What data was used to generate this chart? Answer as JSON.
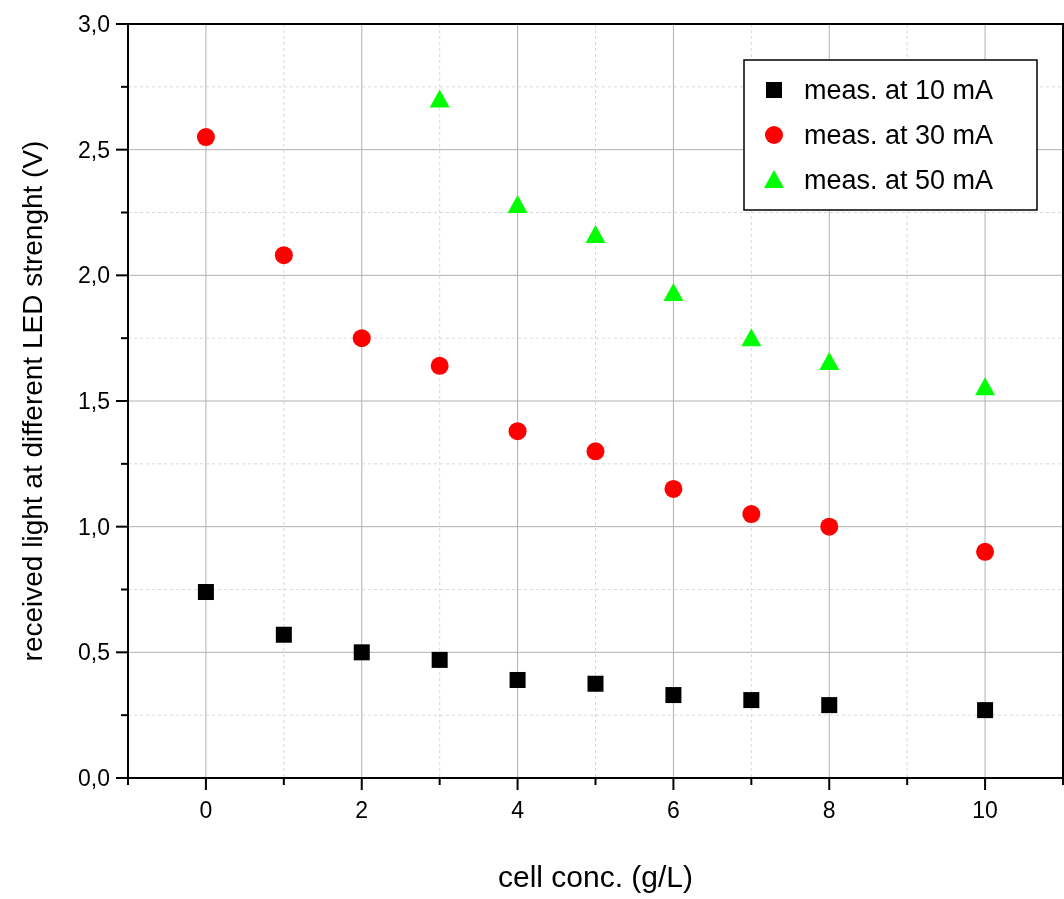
{
  "chart_data": {
    "type": "scatter",
    "xlabel": "cell conc. (g/L)",
    "ylabel": "received light at different LED strenght (V)",
    "xlim": [
      -1,
      11
    ],
    "ylim": [
      0,
      3
    ],
    "xticks": [
      {
        "value": -1,
        "label": null
      },
      {
        "value": 0,
        "label": "0"
      },
      {
        "value": 1,
        "label": null
      },
      {
        "value": 2,
        "label": "2"
      },
      {
        "value": 3,
        "label": null
      },
      {
        "value": 4,
        "label": "4"
      },
      {
        "value": 5,
        "label": null
      },
      {
        "value": 6,
        "label": "6"
      },
      {
        "value": 7,
        "label": null
      },
      {
        "value": 8,
        "label": "8"
      },
      {
        "value": 9,
        "label": null
      },
      {
        "value": 10,
        "label": "10"
      },
      {
        "value": 11,
        "label": null
      }
    ],
    "yticks": [
      {
        "value": 0,
        "label": "0,0"
      },
      {
        "value": 0.25,
        "label": null
      },
      {
        "value": 0.5,
        "label": "0,5"
      },
      {
        "value": 0.75,
        "label": null
      },
      {
        "value": 1,
        "label": "1,0"
      },
      {
        "value": 1.25,
        "label": null
      },
      {
        "value": 1.5,
        "label": "1,5"
      },
      {
        "value": 1.75,
        "label": null
      },
      {
        "value": 2,
        "label": "2,0"
      },
      {
        "value": 2.25,
        "label": null
      },
      {
        "value": 2.5,
        "label": "2,5"
      },
      {
        "value": 2.75,
        "label": null
      },
      {
        "value": 3,
        "label": "3,0"
      }
    ],
    "grid": true,
    "legend": "top right",
    "series": [
      {
        "name": "meas. at 10 mA",
        "color": "#000000",
        "marker": "square",
        "x": [
          0,
          1,
          2,
          3,
          4,
          5,
          6,
          7,
          8,
          10
        ],
        "values": [
          0.74,
          0.57,
          0.5,
          0.47,
          0.39,
          0.375,
          0.33,
          0.31,
          0.29,
          0.27
        ]
      },
      {
        "name": "meas. at 30 mA",
        "color": "#ff0000",
        "marker": "circle",
        "x": [
          0,
          1,
          2,
          3,
          4,
          5,
          6,
          7,
          8,
          10
        ],
        "values": [
          2.55,
          2.08,
          1.75,
          1.64,
          1.38,
          1.3,
          1.15,
          1.05,
          1.0,
          0.9
        ]
      },
      {
        "name": "meas. at 50 mA",
        "color": "#00ff00",
        "marker": "triangle",
        "x": [
          3,
          4,
          5,
          6,
          7,
          8,
          10
        ],
        "values": [
          2.7,
          2.28,
          2.16,
          1.93,
          1.75,
          1.655,
          1.555
        ]
      }
    ]
  }
}
